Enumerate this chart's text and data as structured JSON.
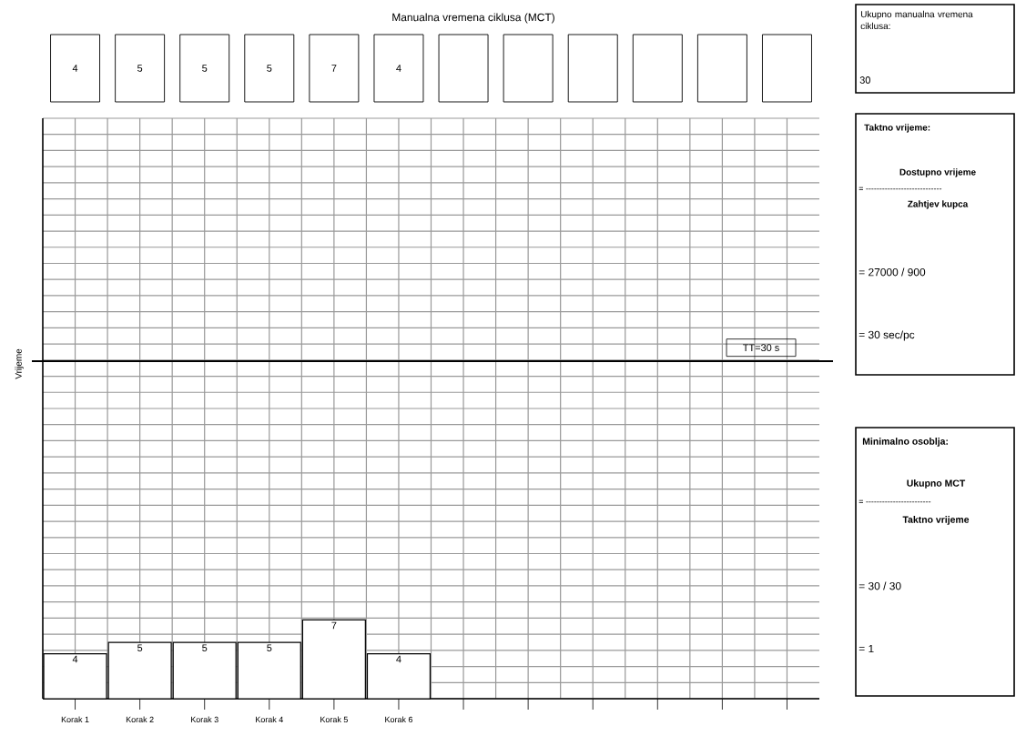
{
  "chart_data": {
    "type": "bar",
    "title": "Manualna vremena ciklusa (MCT)",
    "categories": [
      "Korak 1",
      "Korak 2",
      "Korak 3",
      "Korak 4",
      "Korak 5",
      "Korak 6",
      null,
      null,
      null,
      null,
      null,
      null
    ],
    "values": [
      4,
      5,
      5,
      5,
      7,
      4,
      null,
      null,
      null,
      null,
      null,
      null
    ],
    "color": "#ffffff",
    "data_labels": true,
    "grid": true,
    "tick_labels": "x",
    "ref_lines": [
      {
        "axis": "y",
        "value": 30,
        "label": "TT=30 s",
        "color": "#000000"
      }
    ],
    "annotations": [
      "4",
      "5",
      "5",
      "5",
      "7",
      "4",
      "Ukupno manualna vremena ciklusa:",
      "30",
      "Taktno vrijeme:",
      "Dostupno vrijeme",
      "= ----------------------------",
      "Zahtjev kupca",
      "= 27000 / 900",
      "= 30 sec/pc",
      "Minimalno osoblja:",
      "Ukupno MCT",
      "= ------------------------",
      "Taktno vrijeme",
      "= 30 / 30",
      "= 1",
      "Vrijeme"
    ]
  }
}
